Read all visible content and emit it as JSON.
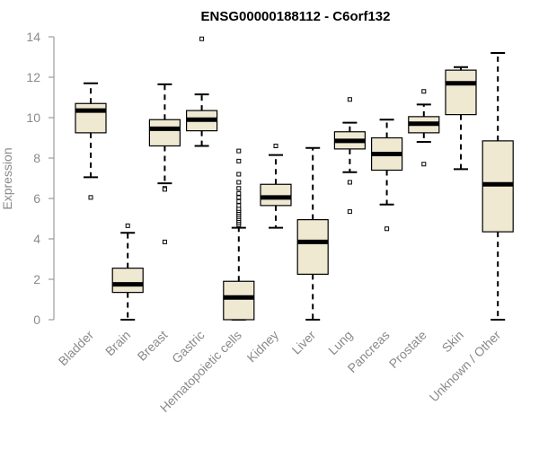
{
  "chart_data": {
    "type": "boxplot",
    "title": "ENSG00000188112 - C6orf132",
    "xlabel": "",
    "ylabel": "Expression",
    "ylim": [
      0,
      14
    ],
    "yticks": [
      0,
      2,
      4,
      6,
      8,
      10,
      12,
      14
    ],
    "grid": false,
    "box_fill": "#efe9d2",
    "box_stroke": "#000000",
    "axis_color": "#8a8a8a",
    "categories": [
      "Bladder",
      "Brain",
      "Breast",
      "Gastric",
      "Hematopoietic cells",
      "Kidney",
      "Liver",
      "Lung",
      "Pancreas",
      "Prostate",
      "Skin",
      "Unknown / Other"
    ],
    "boxes": [
      {
        "category": "Bladder",
        "whisker_low": 7.05,
        "q1": 9.25,
        "median": 10.35,
        "q3": 10.7,
        "whisker_high": 11.7,
        "outliers": [
          6.05
        ]
      },
      {
        "category": "Brain",
        "whisker_low": 0.0,
        "q1": 1.35,
        "median": 1.75,
        "q3": 2.55,
        "whisker_high": 4.3,
        "outliers": [
          4.65
        ]
      },
      {
        "category": "Breast",
        "whisker_low": 6.75,
        "q1": 8.6,
        "median": 9.45,
        "q3": 9.9,
        "whisker_high": 11.65,
        "outliers": [
          6.5,
          6.45,
          3.85
        ]
      },
      {
        "category": "Gastric",
        "whisker_low": 8.6,
        "q1": 9.35,
        "median": 9.9,
        "q3": 10.35,
        "whisker_high": 11.15,
        "outliers": [
          13.9
        ]
      },
      {
        "category": "Hematopoietic cells",
        "whisker_low": 0.0,
        "q1": 0.0,
        "median": 1.1,
        "q3": 1.9,
        "whisker_high": 4.55,
        "outliers": [
          4.7,
          4.8,
          4.9,
          5.0,
          5.1,
          5.2,
          5.3,
          5.4,
          5.5,
          5.65,
          5.85,
          6.05,
          6.25,
          6.5,
          6.8,
          7.2,
          7.85,
          8.35
        ]
      },
      {
        "category": "Kidney",
        "whisker_low": 4.55,
        "q1": 5.65,
        "median": 6.05,
        "q3": 6.7,
        "whisker_high": 8.15,
        "outliers": [
          8.6
        ]
      },
      {
        "category": "Liver",
        "whisker_low": 0.0,
        "q1": 2.25,
        "median": 3.85,
        "q3": 4.95,
        "whisker_high": 8.5,
        "outliers": []
      },
      {
        "category": "Lung",
        "whisker_low": 7.3,
        "q1": 8.45,
        "median": 8.85,
        "q3": 9.3,
        "whisker_high": 9.75,
        "outliers": [
          10.9,
          6.8,
          5.35
        ]
      },
      {
        "category": "Pancreas",
        "whisker_low": 5.7,
        "q1": 7.4,
        "median": 8.2,
        "q3": 9.0,
        "whisker_high": 9.9,
        "outliers": [
          4.5
        ]
      },
      {
        "category": "Prostate",
        "whisker_low": 8.8,
        "q1": 9.25,
        "median": 9.7,
        "q3": 10.05,
        "whisker_high": 10.65,
        "outliers": [
          11.3,
          7.7
        ]
      },
      {
        "category": "Skin",
        "whisker_low": 7.45,
        "q1": 10.15,
        "median": 11.7,
        "q3": 12.35,
        "whisker_high": 12.5,
        "outliers": []
      },
      {
        "category": "Unknown / Other",
        "whisker_low": 0.0,
        "q1": 4.35,
        "median": 6.7,
        "q3": 8.85,
        "whisker_high": 13.2,
        "outliers": []
      }
    ]
  }
}
